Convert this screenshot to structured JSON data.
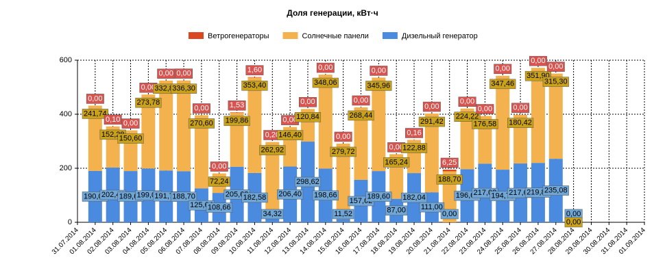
{
  "chart_data": {
    "type": "stacked_bar",
    "title": "Доля генерации, кВт·ч",
    "categories": [
      "31.07.2014",
      "01.08.2014",
      "02.08.2014",
      "03.08.2014",
      "04.08.2014",
      "05.08.2014",
      "06.08.2014",
      "07.08.2014",
      "08.08.2014",
      "09.08.2014",
      "10.08.2014",
      "11.08.2014",
      "12.08.2014",
      "13.08.2014",
      "14.08.2014",
      "15.08.2014",
      "16.08.2014",
      "17.08.2014",
      "18.08.2014",
      "19.08.2014",
      "20.08.2014",
      "21.08.2014",
      "22.08.2014",
      "23.08.2014",
      "24.08.2014",
      "25.08.2014",
      "26.08.2014",
      "27.08.2014",
      "28.08.2014",
      "29.08.2014",
      "30.08.2014",
      "31.08.2014",
      "01.09.2014"
    ],
    "series": [
      {
        "name": "Ветрогенераторы",
        "color": "#d9481e",
        "values": [
          null,
          0,
          0.1,
          0,
          0,
          0,
          0,
          0,
          0,
          1.53,
          1.6,
          0.2,
          0,
          0,
          0,
          0,
          0,
          0,
          0,
          0.16,
          0,
          6.25,
          0,
          0,
          0,
          0,
          0,
          0,
          null,
          null,
          null,
          null,
          null
        ],
        "value_labels": [
          null,
          "0,00",
          "0,10",
          "0,00",
          "0,00",
          "0,00",
          "0,00",
          "0,00",
          "0,00",
          "1,53",
          "1,60",
          "0,20",
          "0,00",
          "0,00",
          "0,00",
          "0,00",
          "0,00",
          "0,00",
          "0,00",
          "0,16",
          "0,00",
          "6,25",
          "0,00",
          "0,00",
          "0,00",
          "0,00",
          "0,00",
          "0,00",
          null,
          null,
          null,
          null,
          null
        ]
      },
      {
        "name": "Солнечные панели",
        "color": "#f4b24e",
        "values": [
          null,
          241.74,
          152.28,
          150.6,
          273.78,
          332.82,
          336.3,
          270.6,
          72.24,
          199.86,
          353.4,
          262.92,
          146.4,
          120.84,
          348.06,
          279.72,
          268.44,
          345.96,
          165.24,
          122.88,
          291.42,
          188.7,
          224.22,
          176.58,
          347.46,
          180.42,
          351.9,
          315.3,
          0,
          null,
          null,
          null,
          null
        ],
        "value_labels": [
          null,
          "241,74",
          "152,28",
          "150,60",
          "273,78",
          "332,82",
          "336,30",
          "270,60",
          "72,24",
          "199,86",
          "353,40",
          "262,92",
          "146,40",
          "120,84",
          "348,06",
          "279,72",
          "268,44",
          "345,96",
          "165,24",
          "122,88",
          "291,42",
          "188,70",
          "224,22",
          "176,58",
          "347,46",
          "180,42",
          "351,90",
          "315,30",
          "0,00",
          null,
          null,
          null,
          null
        ]
      },
      {
        "name": "Дизельный генератор",
        "color": "#4a8be0",
        "values": [
          null,
          190.08,
          202.44,
          189.66,
          199.08,
          191.7,
          188.7,
          125.64,
          108.66,
          205.68,
          182.58,
          34.32,
          206.4,
          298.62,
          198.66,
          11.52,
          157.02,
          189.6,
          87,
          182.04,
          111,
          0,
          196.68,
          217.08,
          194.76,
          217.62,
          219.84,
          235.08,
          0,
          null,
          null,
          null,
          null
        ],
        "value_labels": [
          null,
          "190,08",
          "202,44",
          "189,66",
          "199,08",
          "191,70",
          "188,70",
          "125,64",
          "108,66",
          "205,68",
          "182,58",
          "34,32",
          "206,40",
          "298,62",
          "198,66",
          "11,52",
          "157,02",
          "189,60",
          "87,00",
          "182,04",
          "111,00",
          "0,00",
          "196,68",
          "217,08",
          "194,76",
          "217,62",
          "219,84",
          "235,08",
          "0,00",
          null,
          null,
          null,
          null
        ]
      }
    ],
    "ylim": [
      0,
      600
    ],
    "yticks": [
      0,
      200,
      400,
      600
    ],
    "grid": true,
    "legend": "top"
  }
}
